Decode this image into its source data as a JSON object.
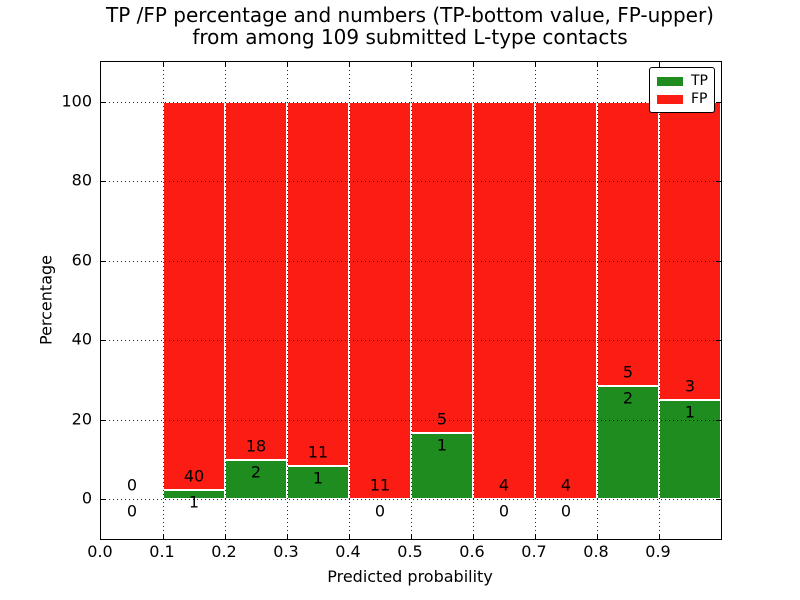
{
  "title": {
    "line1": "TP /FP percentage and numbers (TP-bottom value, FP-upper)",
    "line2": "from among 109 submitted L-type contacts"
  },
  "axes": {
    "xlabel": "Predicted probability",
    "ylabel": "Percentage",
    "x_tick_labels": [
      "0.0",
      "0.1",
      "0.2",
      "0.3",
      "0.4",
      "0.5",
      "0.6",
      "0.7",
      "0.8",
      "0.9"
    ],
    "y_tick_labels": [
      "0",
      "20",
      "40",
      "60",
      "80",
      "100"
    ]
  },
  "legend": {
    "items": [
      {
        "label": "TP",
        "color": "#1e8c1e"
      },
      {
        "label": "FP",
        "color": "#fb1c13"
      }
    ]
  },
  "colors": {
    "tp": "#1e8c1e",
    "fp": "#fb1c13",
    "bar_edge": "#ffffff",
    "grid": "#000000",
    "text": "#000000"
  },
  "chart_data": {
    "type": "bar",
    "stacked": true,
    "title": "TP /FP percentage and numbers (TP-bottom value, FP-upper) from among 109 submitted L-type contacts",
    "xlabel": "Predicted probability",
    "ylabel": "Percentage",
    "xlim": [
      0.0,
      1.0
    ],
    "ylim": [
      -10,
      110
    ],
    "x_ticks": [
      0.0,
      0.1,
      0.2,
      0.3,
      0.4,
      0.5,
      0.6,
      0.7,
      0.8,
      0.9
    ],
    "y_ticks": [
      0,
      20,
      40,
      60,
      80,
      100
    ],
    "grid": "dotted, drawn above bars",
    "legend_position": "upper right",
    "total_contacts": 109,
    "bin_width": 0.1,
    "bins": [
      {
        "range": [
          0.0,
          0.1
        ],
        "tp_count": 0,
        "fp_count": 0,
        "tp_pct": 0,
        "fp_pct": 0,
        "bar": false
      },
      {
        "range": [
          0.1,
          0.2
        ],
        "tp_count": 1,
        "fp_count": 40,
        "tp_pct": 2.44,
        "fp_pct": 97.56,
        "bar": true
      },
      {
        "range": [
          0.2,
          0.3
        ],
        "tp_count": 2,
        "fp_count": 18,
        "tp_pct": 10.0,
        "fp_pct": 90.0,
        "bar": true
      },
      {
        "range": [
          0.3,
          0.4
        ],
        "tp_count": 1,
        "fp_count": 11,
        "tp_pct": 8.33,
        "fp_pct": 91.67,
        "bar": true
      },
      {
        "range": [
          0.4,
          0.5
        ],
        "tp_count": 0,
        "fp_count": 11,
        "tp_pct": 0.0,
        "fp_pct": 100.0,
        "bar": true
      },
      {
        "range": [
          0.5,
          0.6
        ],
        "tp_count": 1,
        "fp_count": 5,
        "tp_pct": 16.67,
        "fp_pct": 83.33,
        "bar": true
      },
      {
        "range": [
          0.6,
          0.7
        ],
        "tp_count": 0,
        "fp_count": 4,
        "tp_pct": 0.0,
        "fp_pct": 100.0,
        "bar": true
      },
      {
        "range": [
          0.7,
          0.8
        ],
        "tp_count": 0,
        "fp_count": 4,
        "tp_pct": 0.0,
        "fp_pct": 100.0,
        "bar": true
      },
      {
        "range": [
          0.8,
          0.9
        ],
        "tp_count": 2,
        "fp_count": 5,
        "tp_pct": 28.57,
        "fp_pct": 71.43,
        "bar": true
      },
      {
        "range": [
          0.9,
          1.0
        ],
        "tp_count": 1,
        "fp_count": 3,
        "tp_pct": 25.0,
        "fp_pct": 75.0,
        "bar": true
      }
    ]
  }
}
